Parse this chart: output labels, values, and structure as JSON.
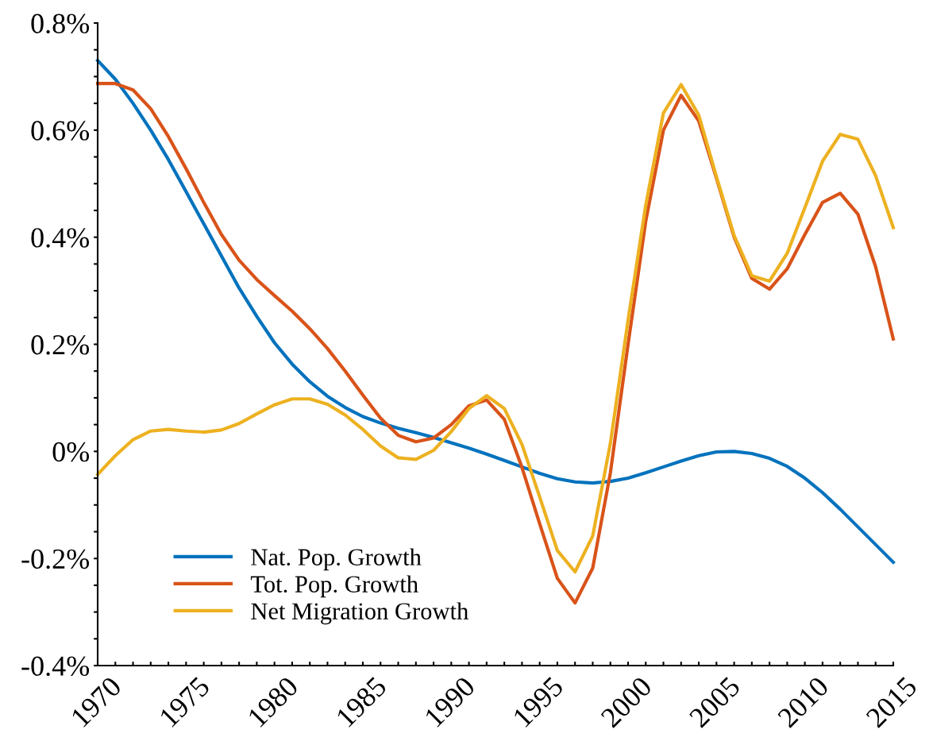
{
  "chart_data": {
    "type": "line",
    "x": [
      1970,
      1971,
      1972,
      1973,
      1974,
      1975,
      1976,
      1977,
      1978,
      1979,
      1980,
      1981,
      1982,
      1983,
      1984,
      1985,
      1986,
      1987,
      1988,
      1989,
      1990,
      1991,
      1992,
      1993,
      1994,
      1995,
      1996,
      1997,
      1998,
      1999,
      2000,
      2001,
      2002,
      2003,
      2004,
      2005,
      2006,
      2007,
      2008,
      2009,
      2010,
      2011,
      2012,
      2013,
      2014,
      2015
    ],
    "series": [
      {
        "name": "Nat. Pop. Growth",
        "color": "#0072bd",
        "values": [
          0.73,
          0.695,
          0.65,
          0.6,
          0.545,
          0.485,
          0.425,
          0.365,
          0.305,
          0.252,
          0.203,
          0.163,
          0.13,
          0.103,
          0.082,
          0.065,
          0.053,
          0.043,
          0.035,
          0.026,
          0.016,
          0.006,
          -0.005,
          -0.017,
          -0.029,
          -0.041,
          -0.051,
          -0.057,
          -0.059,
          -0.056,
          -0.05,
          -0.04,
          -0.029,
          -0.018,
          -0.008,
          -0.001,
          0.0,
          -0.004,
          -0.013,
          -0.028,
          -0.05,
          -0.077,
          -0.108,
          -0.141,
          -0.174,
          -0.207
        ]
      },
      {
        "name": "Tot. Pop. Growth",
        "color": "#d95319",
        "values": [
          0.687,
          0.687,
          0.675,
          0.64,
          0.588,
          0.528,
          0.465,
          0.405,
          0.357,
          0.321,
          0.291,
          0.262,
          0.229,
          0.192,
          0.15,
          0.105,
          0.062,
          0.03,
          0.018,
          0.025,
          0.05,
          0.085,
          0.096,
          0.06,
          -0.03,
          -0.135,
          -0.237,
          -0.283,
          -0.218,
          -0.04,
          0.2,
          0.43,
          0.6,
          0.665,
          0.617,
          0.51,
          0.4,
          0.323,
          0.303,
          0.341,
          0.405,
          0.465,
          0.482,
          0.443,
          0.345,
          0.21
        ]
      },
      {
        "name": "Net Migration Growth",
        "color": "#edb120",
        "values": [
          -0.043,
          -0.008,
          0.022,
          0.038,
          0.041,
          0.038,
          0.036,
          0.04,
          0.052,
          0.07,
          0.087,
          0.098,
          0.098,
          0.088,
          0.068,
          0.041,
          0.01,
          -0.012,
          -0.015,
          0.002,
          0.037,
          0.08,
          0.104,
          0.08,
          0.013,
          -0.085,
          -0.185,
          -0.225,
          -0.158,
          0.015,
          0.245,
          0.46,
          0.632,
          0.685,
          0.628,
          0.513,
          0.403,
          0.328,
          0.318,
          0.37,
          0.455,
          0.542,
          0.592,
          0.583,
          0.515,
          0.418
        ]
      }
    ],
    "xlim": [
      1970,
      2015
    ],
    "xticks": [
      1970,
      {
        "value": 1971,
        "label": null
      },
      {
        "value": 1972,
        "label": null
      },
      {
        "value": 1973,
        "label": null
      },
      {
        "value": 1974,
        "label": null
      },
      1975,
      {
        "value": 1976,
        "label": null
      },
      {
        "value": 1977,
        "label": null
      },
      {
        "value": 1978,
        "label": null
      },
      {
        "value": 1979,
        "label": null
      },
      1980,
      {
        "value": 1981,
        "label": null
      },
      {
        "value": 1982,
        "label": null
      },
      {
        "value": 1983,
        "label": null
      },
      {
        "value": 1984,
        "label": null
      },
      1985,
      {
        "value": 1986,
        "label": null
      },
      {
        "value": 1987,
        "label": null
      },
      {
        "value": 1988,
        "label": null
      },
      {
        "value": 1989,
        "label": null
      },
      1990,
      {
        "value": 1991,
        "label": null
      },
      {
        "value": 1992,
        "label": null
      },
      {
        "value": 1993,
        "label": null
      },
      {
        "value": 1994,
        "label": null
      },
      1995,
      {
        "value": 1996,
        "label": null
      },
      {
        "value": 1997,
        "label": null
      },
      {
        "value": 1998,
        "label": null
      },
      {
        "value": 1999,
        "label": null
      },
      2000,
      {
        "value": 2001,
        "label": null
      },
      {
        "value": 2002,
        "label": null
      },
      {
        "value": 2003,
        "label": null
      },
      {
        "value": 2004,
        "label": null
      },
      2005,
      {
        "value": 2006,
        "label": null
      },
      {
        "value": 2007,
        "label": null
      },
      {
        "value": 2008,
        "label": null
      },
      {
        "value": 2009,
        "label": null
      },
      2010,
      {
        "value": 2011,
        "label": null
      },
      {
        "value": 2012,
        "label": null
      },
      {
        "value": 2013,
        "label": null
      },
      {
        "value": 2014,
        "label": null
      },
      2015
    ],
    "ylim": [
      -0.4,
      0.8
    ],
    "yticks": [
      {
        "value": -0.4,
        "label": "-0.4%"
      },
      {
        "value": -0.35,
        "label": null
      },
      {
        "value": -0.3,
        "label": null
      },
      {
        "value": -0.25,
        "label": null
      },
      {
        "value": -0.2,
        "label": "-0.2%"
      },
      {
        "value": -0.15,
        "label": null
      },
      {
        "value": -0.1,
        "label": null
      },
      {
        "value": -0.05,
        "label": null
      },
      {
        "value": 0,
        "label": "0%"
      },
      {
        "value": 0.05,
        "label": null
      },
      {
        "value": 0.1,
        "label": null
      },
      {
        "value": 0.15,
        "label": null
      },
      {
        "value": 0.2,
        "label": "0.2%"
      },
      {
        "value": 0.25,
        "label": null
      },
      {
        "value": 0.3,
        "label": null
      },
      {
        "value": 0.35,
        "label": null
      },
      {
        "value": 0.4,
        "label": "0.4%"
      },
      {
        "value": 0.45,
        "label": null
      },
      {
        "value": 0.5,
        "label": null
      },
      {
        "value": 0.55,
        "label": null
      },
      {
        "value": 0.6,
        "label": "0.6%"
      },
      {
        "value": 0.65,
        "label": null
      },
      {
        "value": 0.7,
        "label": null
      },
      {
        "value": 0.75,
        "label": null
      },
      {
        "value": 0.8,
        "label": "0.8%"
      }
    ],
    "grid": false,
    "legend": "bottom left",
    "line_style": "solid",
    "marker": "none"
  }
}
